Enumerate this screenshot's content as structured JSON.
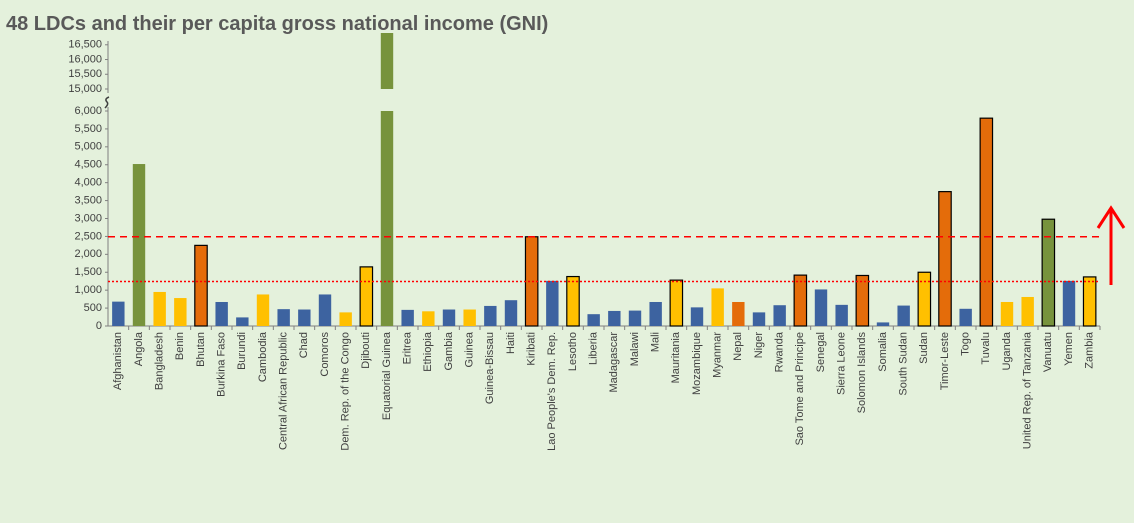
{
  "chart_data": {
    "type": "bar",
    "title": "48 LDCs and their per capita gross national income (GNI)",
    "categories": [
      "Afghanistan",
      "Angola",
      "Bangladesh",
      "Benin",
      "Bhutan",
      "Burkina Faso",
      "Burundi",
      "Cambodia",
      "Central African Republic",
      "Chad",
      "Comoros",
      "Dem. Rep. of the Congo",
      "Djibouti",
      "Equatorial Guinea",
      "Eritrea",
      "Ethiopia",
      "Gambia",
      "Guinea",
      "Guinea-Bissau",
      "Haiti",
      "Kiribati",
      "Lao People's Dem. Rep.",
      "Lesotho",
      "Liberia",
      "Madagascar",
      "Malawi",
      "Mali",
      "Mauritania",
      "Mozambique",
      "Myanmar",
      "Nepal",
      "Niger",
      "Rwanda",
      "Sao Tome and Principe",
      "Senegal",
      "Sierra Leone",
      "Solomon Islands",
      "Somalia",
      "South Sudan",
      "Sudan",
      "Timor-Leste",
      "Togo",
      "Tuvalu",
      "Uganda",
      "United Rep. of Tanzania",
      "Vanuatu",
      "Yemen",
      "Zambia"
    ],
    "values": [
      680,
      4520,
      950,
      780,
      2250,
      670,
      240,
      880,
      470,
      460,
      880,
      380,
      1650,
      16900,
      450,
      410,
      460,
      460,
      560,
      720,
      2490,
      1260,
      1380,
      330,
      420,
      430,
      670,
      1280,
      520,
      1050,
      670,
      380,
      580,
      1420,
      1020,
      590,
      1410,
      100,
      570,
      1500,
      3750,
      480,
      5800,
      670,
      810,
      2980,
      1260,
      1370
    ],
    "colors": [
      "#3d63a0",
      "#77933c",
      "#ffc000",
      "#ffc000",
      "#e46c0a",
      "#3d63a0",
      "#3d63a0",
      "#ffc000",
      "#3d63a0",
      "#3d63a0",
      "#3d63a0",
      "#ffc000",
      "#ffc000",
      "#77933c",
      "#3d63a0",
      "#ffc000",
      "#3d63a0",
      "#ffc000",
      "#3d63a0",
      "#3d63a0",
      "#e46c0a",
      "#3d63a0",
      "#ffc000",
      "#3d63a0",
      "#3d63a0",
      "#3d63a0",
      "#3d63a0",
      "#ffc000",
      "#3d63a0",
      "#ffc000",
      "#e46c0a",
      "#3d63a0",
      "#3d63a0",
      "#e46c0a",
      "#3d63a0",
      "#3d63a0",
      "#e46c0a",
      "#3d63a0",
      "#3d63a0",
      "#ffc000",
      "#e46c0a",
      "#3d63a0",
      "#e46c0a",
      "#ffc000",
      "#ffc000",
      "#77933c",
      "#3d63a0",
      "#ffc000"
    ],
    "outlined": [
      false,
      false,
      false,
      false,
      true,
      false,
      false,
      false,
      false,
      false,
      false,
      false,
      true,
      false,
      false,
      false,
      false,
      false,
      false,
      false,
      true,
      false,
      true,
      false,
      false,
      false,
      false,
      true,
      false,
      false,
      false,
      false,
      false,
      true,
      false,
      false,
      true,
      false,
      false,
      true,
      true,
      false,
      true,
      false,
      false,
      true,
      false,
      true
    ],
    "ylim": [
      0,
      16900
    ],
    "axis_break": [
      6000,
      15000
    ],
    "yticks": [
      0,
      500,
      {
        "value": 1000,
        "label": "1,000"
      },
      {
        "value": 1500,
        "label": "1,500"
      },
      {
        "value": 2000,
        "label": "2,000"
      },
      {
        "value": 2500,
        "label": "2,500"
      },
      {
        "value": 3000,
        "label": "3,000"
      },
      {
        "value": 3500,
        "label": "3,500"
      },
      {
        "value": 4000,
        "label": "4,000"
      },
      {
        "value": 4500,
        "label": "4,500"
      },
      {
        "value": 5000,
        "label": "5,000"
      },
      {
        "value": 5500,
        "label": "5,500"
      },
      {
        "value": 6000,
        "label": "6,000"
      },
      {
        "value": 15000,
        "label": "15,000"
      },
      {
        "value": 15500,
        "label": "15,500"
      },
      {
        "value": 16000,
        "label": "16,000"
      },
      {
        "value": 16500,
        "label": "16,500"
      }
    ],
    "reference_lines": [
      {
        "value": 2490,
        "color": "#ff0000",
        "style": "dashed"
      },
      {
        "value": 1242,
        "color": "#ff0000",
        "style": "dotted"
      }
    ]
  }
}
